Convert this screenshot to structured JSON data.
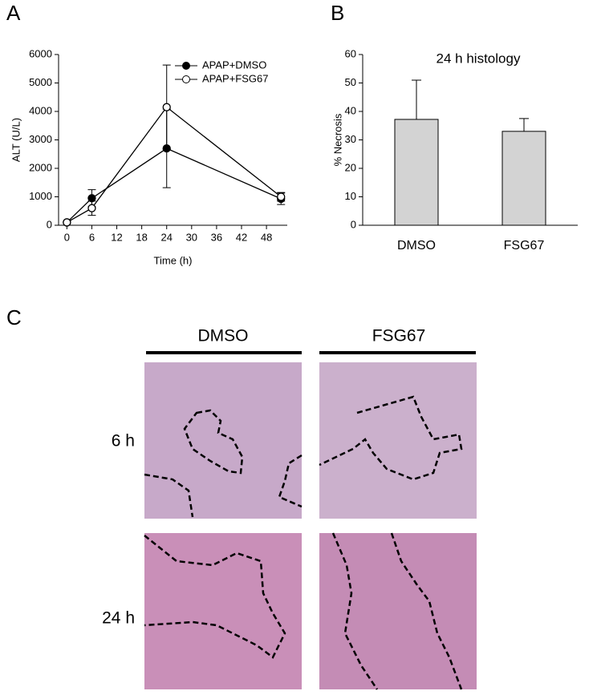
{
  "panels": {
    "a": "A",
    "b": "B",
    "c": "C"
  },
  "chart_data": [
    {
      "type": "line",
      "x_label": "Time (h)",
      "y_label": "ALT (U/L)",
      "x": [
        0,
        6,
        24,
        51.5
      ],
      "xlim": [
        -2,
        53
      ],
      "xticks": [
        0,
        6,
        12,
        18,
        24,
        30,
        36,
        42,
        48
      ],
      "ylim": [
        0,
        6000
      ],
      "yticks": [
        0,
        1000,
        2000,
        3000,
        4000,
        5000,
        6000
      ],
      "legend": "upper right",
      "series": [
        {
          "name": "APAP+DMSO",
          "color": "#000000",
          "marker": "filled",
          "values": [
            100,
            950,
            2700,
            930
          ],
          "errors": [
            null,
            300,
            1380,
            200
          ]
        },
        {
          "name": "APAP+FSG67",
          "color": "#000000",
          "marker": "open",
          "values": [
            100,
            600,
            4150,
            1000
          ],
          "errors": [
            null,
            250,
            1480,
            150
          ]
        }
      ]
    },
    {
      "type": "bar",
      "title": "24 h histology",
      "y_label": "% Necrosis",
      "categories": [
        "DMSO",
        "FSG67"
      ],
      "values": [
        37.2,
        33
      ],
      "errors": [
        13.8,
        4.5
      ],
      "color": "#d3d3d3",
      "ylim": [
        0,
        60
      ],
      "yticks": [
        0,
        10,
        20,
        30,
        40,
        50,
        60
      ]
    }
  ],
  "histology": {
    "columns": [
      "DMSO",
      "FSG67"
    ],
    "rows": [
      "6 h",
      "24 h"
    ]
  }
}
